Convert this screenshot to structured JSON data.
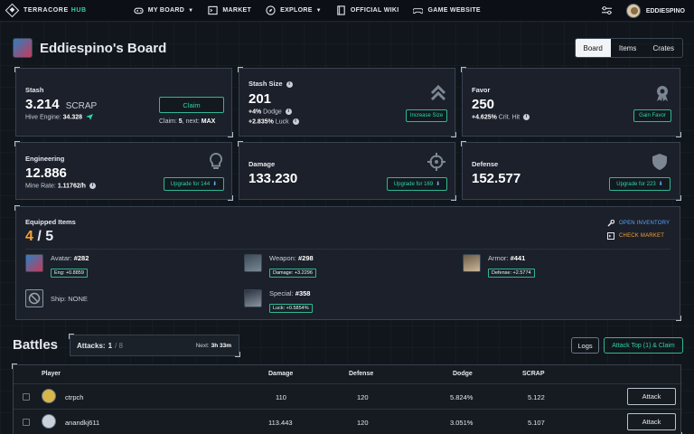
{
  "nav": {
    "brand_left": "TERRACORE",
    "brand_right": "HUB",
    "items": [
      {
        "label": "MY BOARD",
        "icon": "gamepad-icon",
        "dropdown": true
      },
      {
        "label": "MARKET",
        "icon": "terminal-icon",
        "dropdown": false
      },
      {
        "label": "EXPLORE",
        "icon": "compass-icon",
        "dropdown": true
      },
      {
        "label": "OFFICIAL WIKI",
        "icon": "book-icon",
        "dropdown": false
      },
      {
        "label": "GAME WEBSITE",
        "icon": "controller-icon",
        "dropdown": false
      }
    ],
    "username": "EDDIESPINO"
  },
  "page": {
    "title": "Eddiespino's Board",
    "tabs": [
      "Board",
      "Items",
      "Crates"
    ],
    "active_tab": "Board"
  },
  "stash": {
    "label": "Stash",
    "value": "3.214",
    "unit": "SCRAP",
    "hive_label": "Hive Engine:",
    "hive_value": "34.328",
    "claim_button": "Claim",
    "claim_label": "Claim:",
    "claim_value": "5",
    "next_label": ", next:",
    "next_value": "MAX"
  },
  "stash_size": {
    "label": "Stash Size",
    "value": "201",
    "line1_value": "+4%",
    "line1_label": "Dodge",
    "line2_value": "+2.835%",
    "line2_label": "Luck",
    "button": "Increase Size"
  },
  "favor": {
    "label": "Favor",
    "value": "250",
    "line_value": "+4.625%",
    "line_label": "Crit. Hit",
    "button": "Gain Favor"
  },
  "engineering": {
    "label": "Engineering",
    "value": "12.886",
    "rate_label": "Mine Rate:",
    "rate_value": "1.11762/h",
    "button": "Upgrade for 144"
  },
  "damage": {
    "label": "Damage",
    "value": "133.230",
    "button": "Upgrade for 169"
  },
  "defense": {
    "label": "Defense",
    "value": "152.577",
    "button": "Upgrade for 223"
  },
  "equipped": {
    "title": "Equipped Items",
    "count": "4",
    "sep": " / ",
    "total": "5",
    "open_inventory": "OPEN INVENTORY",
    "check_market": "CHECK MARKET",
    "avatar": {
      "name": "Avatar:",
      "id": "#282",
      "stat": "Eng: +0.8859"
    },
    "weapon": {
      "name": "Weapon:",
      "id": "#298",
      "stat": "Damage: +3.2296"
    },
    "armor": {
      "name": "Armor:",
      "id": "#441",
      "stat": "Defense: +2.5774"
    },
    "ship": {
      "name": "Ship:",
      "id": "NONE"
    },
    "special": {
      "name": "Special:",
      "id": "#358",
      "stat": "Luck: +0.5854%"
    }
  },
  "battles": {
    "title": "Battles",
    "attacks_label": "Attacks:",
    "attacks_used": "1",
    "attacks_total": "/ 8",
    "next_label": "Next:",
    "next_value": "3h 33m",
    "logs_button": "Logs",
    "attack_top_button": "Attack Top (1) & Claim",
    "columns": [
      "Player",
      "Damage",
      "Defense",
      "Dodge",
      "SCRAP"
    ],
    "rows": [
      {
        "player": "ctrpch",
        "damage": "110",
        "defense": "120",
        "dodge": "5.824%",
        "scrap": "5.122",
        "action": "Attack"
      },
      {
        "player": "anandkj611",
        "damage": "113.443",
        "defense": "120",
        "dodge": "3.051%",
        "scrap": "5.107",
        "action": "Attack"
      }
    ]
  },
  "colors": {
    "accent": "#2fd3a8",
    "count_highlight": "#f2a33a",
    "background": "#11161d",
    "card": "#1c222b"
  }
}
